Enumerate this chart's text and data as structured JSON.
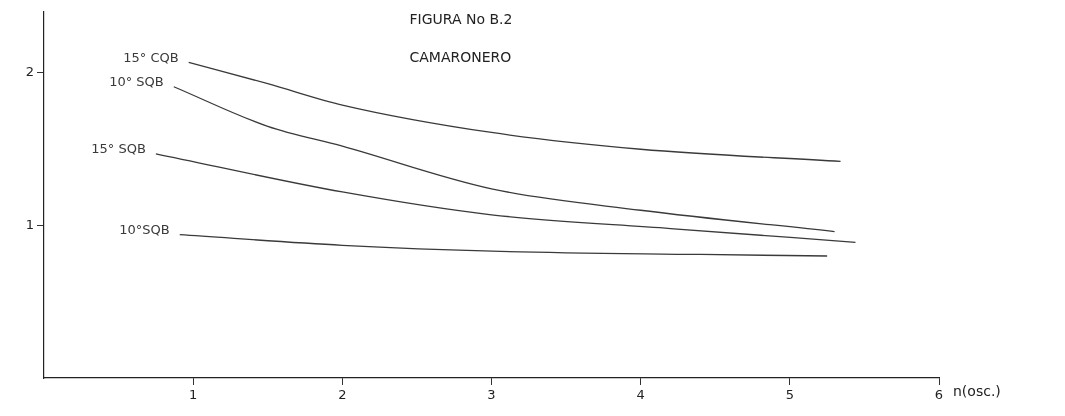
{
  "chart_data": {
    "type": "line",
    "title": "FIGURA No B.2",
    "subtitle": "CAMARONERO",
    "xlabel": "n(osc.)",
    "xlim": [
      0,
      6
    ],
    "xticks": [
      1,
      2,
      3,
      4,
      5,
      6
    ],
    "ylim": [
      0,
      2.4
    ],
    "yticks": [
      1,
      2
    ],
    "grid": false,
    "legend": false,
    "marker": "none",
    "line_style": "solid",
    "series": [
      {
        "name": "15° CQB",
        "color": "#3a3a3a",
        "x": [
          0.97,
          1.5,
          2,
          3,
          4,
          5.34
        ],
        "values": [
          2.07,
          1.93,
          1.79,
          1.61,
          1.5,
          1.42
        ]
      },
      {
        "name": "10° SQB",
        "color": "#3a3a3a",
        "x": [
          0.87,
          1.5,
          2,
          3,
          4,
          5.3
        ],
        "values": [
          1.91,
          1.65,
          1.52,
          1.24,
          1.1,
          0.96
        ]
      },
      {
        "name": "15° SQB",
        "color": "#3a3a3a",
        "x": [
          0.75,
          2,
          3,
          4.2,
          5.44
        ],
        "values": [
          1.47,
          1.22,
          1.07,
          0.98,
          0.89
        ]
      },
      {
        "name": "10°SQB",
        "color": "#3a3a3a",
        "x": [
          0.91,
          2,
          3.06,
          4.4,
          5.25
        ],
        "values": [
          0.94,
          0.87,
          0.83,
          0.81,
          0.8
        ]
      }
    ]
  }
}
